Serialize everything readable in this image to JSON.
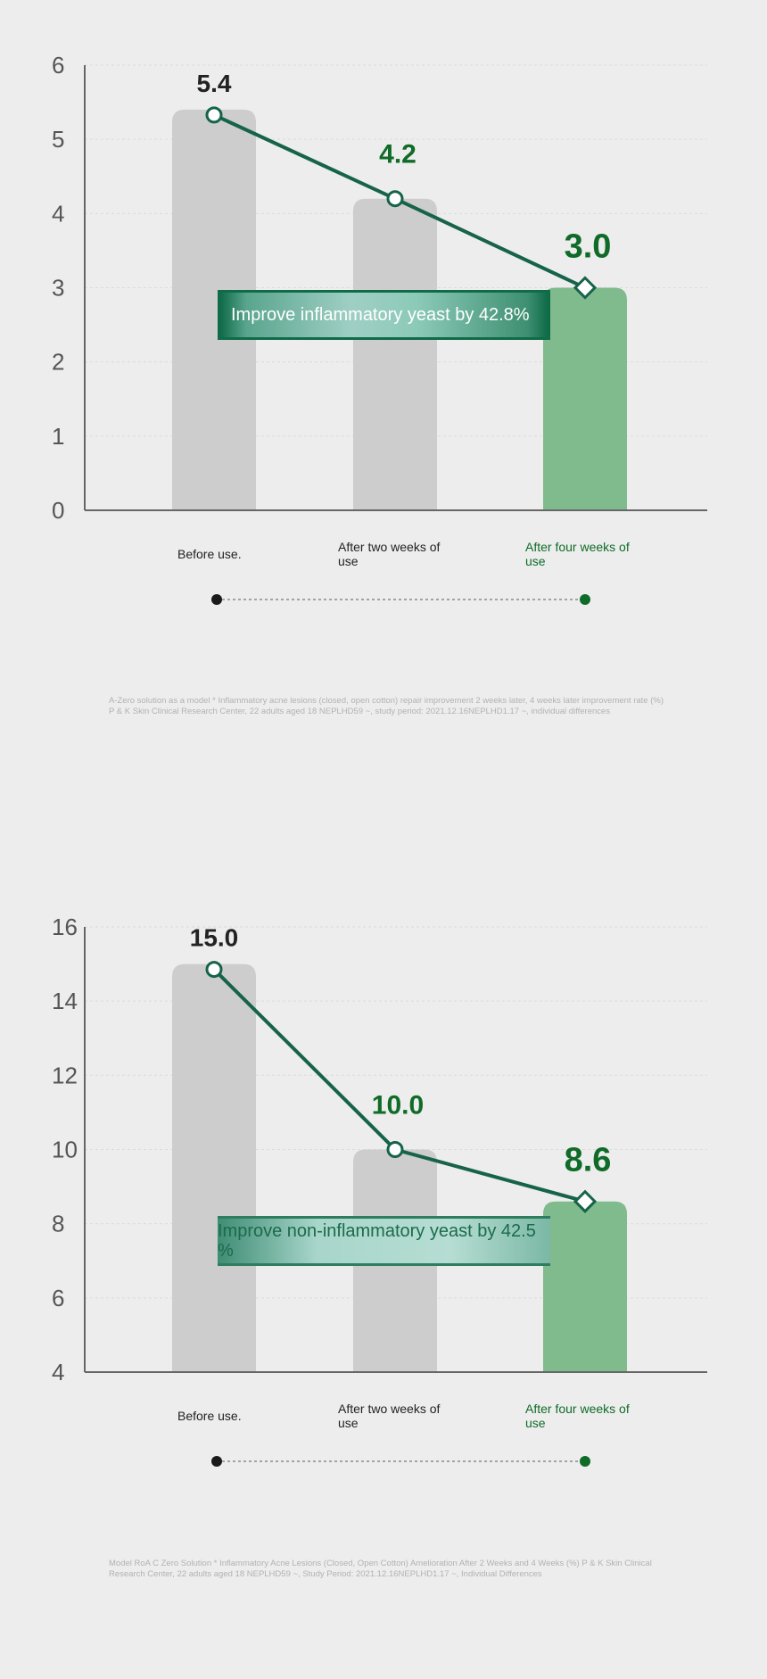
{
  "chart_data": [
    {
      "type": "bar",
      "categories": [
        "Before use.",
        "After two weeks of use",
        "After four weeks of use"
      ],
      "values": [
        5.4,
        4.2,
        3.0
      ],
      "value_labels": [
        "5.4",
        "4.2",
        "3.0"
      ],
      "y_ticks": [
        "0",
        "1",
        "2",
        "3",
        "4",
        "5",
        "6"
      ],
      "ylim": [
        0,
        6
      ],
      "line_overlay": true,
      "grid": true,
      "banner": "Improve inflammatory yeast by 42.8%",
      "footnote": "A-Zero solution as a model * Inflammatory acne lesions (closed, open cotton) repair improvement 2 weeks later, 4 weeks later improvement rate (%) P & K Skin Clinical Research Center, 22 adults aged 18 NEPLHD59 ~, study period: 2021.12.16NEPLHD1.17 ~, individual differences"
    },
    {
      "type": "bar",
      "categories": [
        "Before use.",
        "After two weeks of use",
        "After four weeks of use"
      ],
      "values": [
        15.0,
        10.0,
        8.6
      ],
      "value_labels": [
        "15.0",
        "10.0",
        "8.6"
      ],
      "y_ticks": [
        "4",
        "6",
        "8",
        "10",
        "12",
        "14",
        "16"
      ],
      "ylim": [
        4,
        16
      ],
      "line_overlay": true,
      "grid": true,
      "banner": "Improve non-inflammatory yeast by 42.5 %",
      "footnote": "Model RoA C Zero Solution * Inflammatory Acne Lesions (Closed, Open Cotton) Amelioration After 2 Weeks and 4 Weeks (%) P & K Skin Clinical Research Center, 22 adults aged 18 NEPLHD59 ~, Study Period: 2021.12.16NEPLHD1.17 ~, Individual Differences"
    }
  ],
  "colors": {
    "bar_gray": "#cdcdcd",
    "bar_green": "#7fbb8c",
    "line_green": "#16634a",
    "dark_green": "#0f6b27",
    "axis": "#666666"
  }
}
